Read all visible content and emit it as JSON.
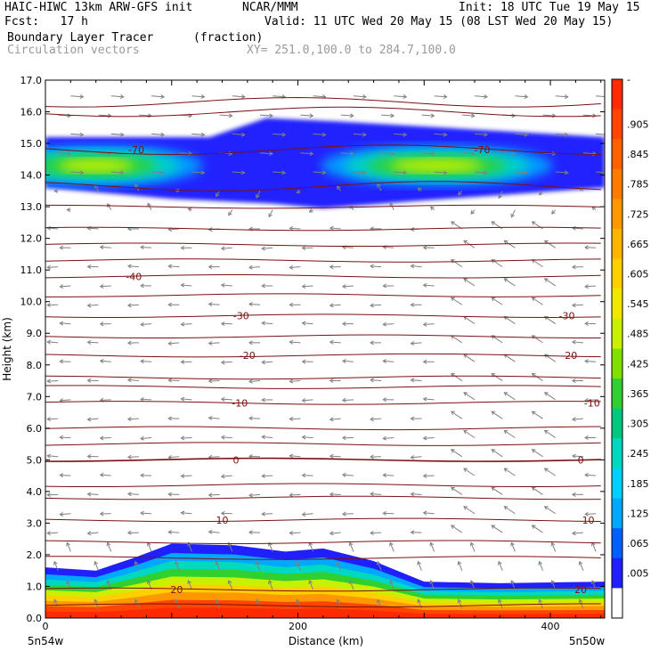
{
  "header": {
    "title": "HAIC-HIWC 13km ARW-GFS init",
    "source": "NCAR/MMM",
    "init": "Init: 18 UTC Tue 19 May 15",
    "fcst": "Fcst:   17 h",
    "valid": "Valid: 11 UTC Wed 20 May 15 (08 LST Wed 20 May 15)",
    "field1": "Boundary Layer Tracer",
    "field1_units": "(fraction)",
    "field2": "Circulation vectors",
    "xsection": "XY= 251.0,100.0 to 284.7,100.0"
  },
  "colors": {
    "contour": "#7a1010",
    "vector": "#808080",
    "frame": "#000000"
  },
  "chart_data": {
    "type": "heatmap",
    "title": "Boundary Layer Tracer",
    "xlabel": "Distance (km)",
    "ylabel": "Height (km)",
    "xlim": [
      0,
      443
    ],
    "ylim": [
      0,
      17
    ],
    "x_ticks": [
      0,
      200,
      400
    ],
    "y_ticks": [
      "0.0",
      "1.0",
      "2.0",
      "3.0",
      "4.0",
      "5.0",
      "6.0",
      "7.0",
      "8.0",
      "9.0",
      "10.0",
      "11.0",
      "12.0",
      "13.0",
      "14.0",
      "15.0",
      "16.0",
      "17.0"
    ],
    "x_left_label": "5n54w",
    "x_right_label": "5n50w",
    "colorbar": {
      "labels": [
        "-",
        ".905",
        ".845",
        ".785",
        ".725",
        ".665",
        ".605",
        ".545",
        ".485",
        ".425",
        ".365",
        ".305",
        ".245",
        ".185",
        ".125",
        ".065",
        ".005"
      ],
      "colors": [
        "#ff2a00",
        "#ff4500",
        "#ff6000",
        "#ff7c00",
        "#ff9800",
        "#ffb400",
        "#ffd000",
        "#f0e800",
        "#c8f000",
        "#80e000",
        "#30d030",
        "#00c880",
        "#00d8c0",
        "#00d0ff",
        "#00a8ff",
        "#0060ff",
        "#2020ff",
        "#ffffff"
      ]
    },
    "contours": [
      {
        "label": "-70",
        "height": 14.8
      },
      {
        "label": "-40",
        "height": 10.8
      },
      {
        "label": "-30",
        "height": 9.55
      },
      {
        "label": "-20",
        "height": 8.3
      },
      {
        "label": "-10",
        "height": 6.8
      },
      {
        "label": "0",
        "height": 5.0
      },
      {
        "label": "10",
        "height": 3.1
      },
      {
        "label": "20",
        "height": 0.9
      }
    ],
    "contour_labels": [
      {
        "text": "-70",
        "x": 72,
        "y": 14.8
      },
      {
        "text": "-70",
        "x": 346,
        "y": 14.8
      },
      {
        "text": "-40",
        "x": 70,
        "y": 10.8
      },
      {
        "text": "-30",
        "x": 155,
        "y": 9.55
      },
      {
        "text": "-30",
        "x": 413,
        "y": 9.55
      },
      {
        "text": "-20",
        "x": 160,
        "y": 8.3
      },
      {
        "text": "-20",
        "x": 415,
        "y": 8.3
      },
      {
        "text": "-10",
        "x": 154,
        "y": 6.8
      },
      {
        "text": "-10",
        "x": 433,
        "y": 6.8
      },
      {
        "text": "0",
        "x": 151,
        "y": 5.0
      },
      {
        "text": "0",
        "x": 424,
        "y": 5.0
      },
      {
        "text": "10",
        "x": 140,
        "y": 3.1
      },
      {
        "text": "10",
        "x": 430,
        "y": 3.1
      },
      {
        "text": "20",
        "x": 104,
        "y": 0.9
      },
      {
        "text": "20",
        "x": 424,
        "y": 0.9
      }
    ],
    "tracer_upper_layer": {
      "base_km": 13.6,
      "top_km": 15.2,
      "peak_centers": [
        {
          "x": 40,
          "y": 14.3
        },
        {
          "x": 300,
          "y": 14.3
        }
      ]
    },
    "tracer_boundary_layer": {
      "top_profile_km": [
        {
          "x": 0,
          "y": 1.6
        },
        {
          "x": 40,
          "y": 1.5
        },
        {
          "x": 70,
          "y": 1.9
        },
        {
          "x": 100,
          "y": 2.35
        },
        {
          "x": 150,
          "y": 2.3
        },
        {
          "x": 190,
          "y": 2.1
        },
        {
          "x": 220,
          "y": 2.2
        },
        {
          "x": 260,
          "y": 1.8
        },
        {
          "x": 300,
          "y": 1.15
        },
        {
          "x": 360,
          "y": 1.1
        },
        {
          "x": 443,
          "y": 1.15
        }
      ],
      "surface_value": 0.99
    }
  }
}
